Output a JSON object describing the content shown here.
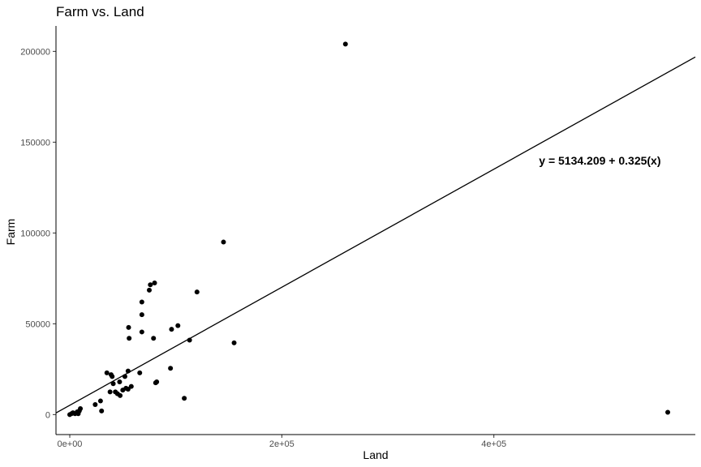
{
  "chart_data": {
    "type": "scatter",
    "title": "Farm vs. Land",
    "xlabel": "Land",
    "ylabel": "Farm",
    "xlim": [
      -13000,
      590000
    ],
    "ylim": [
      -11000,
      214000
    ],
    "x_ticks": [
      0,
      200000,
      400000
    ],
    "x_tick_labels": [
      "0e+00",
      "2e+05",
      "4e+05"
    ],
    "y_ticks": [
      0,
      50000,
      100000,
      150000,
      200000
    ],
    "y_tick_labels": [
      "0",
      "50000",
      "100000",
      "150000",
      "200000"
    ],
    "grid": false,
    "legend": "none",
    "regression": {
      "intercept": 5134.209,
      "slope": 0.325,
      "label": "y = 5134.209 + 0.325(x)"
    },
    "annotation_position": {
      "x": 500000,
      "y": 140000
    },
    "points": [
      [
        0,
        0
      ],
      [
        2000,
        600
      ],
      [
        3000,
        1000
      ],
      [
        5000,
        500
      ],
      [
        7000,
        1500
      ],
      [
        8000,
        500
      ],
      [
        9000,
        2000
      ],
      [
        10000,
        3300
      ],
      [
        24000,
        5500
      ],
      [
        29000,
        7500
      ],
      [
        30000,
        2000
      ],
      [
        35000,
        23000
      ],
      [
        38000,
        12500
      ],
      [
        39000,
        22000
      ],
      [
        40000,
        21000
      ],
      [
        41000,
        17000
      ],
      [
        43000,
        12500
      ],
      [
        45000,
        11500
      ],
      [
        47000,
        18000
      ],
      [
        47500,
        10500
      ],
      [
        50000,
        13500
      ],
      [
        52000,
        21000
      ],
      [
        53000,
        14500
      ],
      [
        55000,
        14000
      ],
      [
        55000,
        24000
      ],
      [
        55500,
        48000
      ],
      [
        56000,
        42000
      ],
      [
        58000,
        15500
      ],
      [
        66000,
        23000
      ],
      [
        68000,
        45500
      ],
      [
        68000,
        55000
      ],
      [
        68000,
        62000
      ],
      [
        75000,
        68500
      ],
      [
        76000,
        71500
      ],
      [
        79000,
        42000
      ],
      [
        80000,
        72500
      ],
      [
        81000,
        17500
      ],
      [
        82000,
        18000
      ],
      [
        95000,
        25500
      ],
      [
        96000,
        47000
      ],
      [
        102000,
        49000
      ],
      [
        108000,
        9000
      ],
      [
        113000,
        41000
      ],
      [
        120000,
        67500
      ],
      [
        145000,
        95000
      ],
      [
        155000,
        39500
      ],
      [
        260000,
        204000
      ],
      [
        564000,
        1300
      ]
    ]
  }
}
